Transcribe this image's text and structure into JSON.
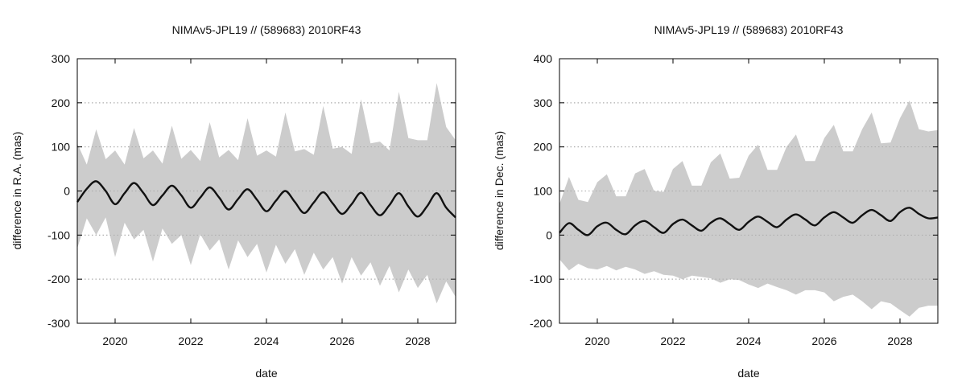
{
  "chart_data": [
    {
      "type": "area",
      "title": "NIMAv5-JPL19 // (589683) 2010RF43",
      "xlabel": "date",
      "ylabel": "difference in R.A. (mas)",
      "xlim": [
        2019.0,
        2029.0
      ],
      "ylim": [
        -300,
        300
      ],
      "xticks": [
        2020,
        2022,
        2024,
        2026,
        2028
      ],
      "xtick_labels": [
        "2020",
        "2022",
        "2024",
        "2026",
        "2028"
      ],
      "yticks": [
        -300,
        -200,
        -100,
        0,
        100,
        200,
        300
      ],
      "ytick_labels": [
        "-300",
        "-200",
        "-100",
        "0",
        "100",
        "200",
        "300"
      ],
      "grid": "horizontal dotted",
      "band_color": "#cccccc",
      "line_color": "#111111",
      "series": [
        {
          "kind": "upper_envelope",
          "x": [
            2019.0,
            2019.25,
            2019.5,
            2019.75,
            2020.0,
            2020.25,
            2020.5,
            2020.75,
            2021.0,
            2021.25,
            2021.5,
            2021.75,
            2022.0,
            2022.25,
            2022.5,
            2022.75,
            2023.0,
            2023.25,
            2023.5,
            2023.75,
            2024.0,
            2024.25,
            2024.5,
            2024.75,
            2025.0,
            2025.25,
            2025.5,
            2025.75,
            2026.0,
            2026.25,
            2026.5,
            2026.75,
            2027.0,
            2027.25,
            2027.5,
            2027.75,
            2028.0,
            2028.25,
            2028.5,
            2028.75,
            2029.0
          ],
          "y": [
            108,
            60,
            140,
            72,
            92,
            60,
            143,
            74,
            92,
            62,
            148,
            73,
            93,
            68,
            156,
            76,
            93,
            70,
            165,
            80,
            92,
            78,
            178,
            90,
            95,
            82,
            193,
            96,
            100,
            84,
            208,
            108,
            112,
            92,
            225,
            120,
            115,
            115,
            245,
            145,
            115
          ]
        },
        {
          "kind": "lower_envelope",
          "x": [
            2019.0,
            2019.25,
            2019.5,
            2019.75,
            2020.0,
            2020.25,
            2020.5,
            2020.75,
            2021.0,
            2021.25,
            2021.5,
            2021.75,
            2022.0,
            2022.25,
            2022.5,
            2022.75,
            2023.0,
            2023.25,
            2023.5,
            2023.75,
            2024.0,
            2024.25,
            2024.5,
            2024.75,
            2025.0,
            2025.25,
            2025.5,
            2025.75,
            2026.0,
            2026.25,
            2026.5,
            2026.75,
            2027.0,
            2027.25,
            2027.5,
            2027.75,
            2028.0,
            2028.25,
            2028.5,
            2028.75,
            2029.0
          ],
          "y": [
            -130,
            -62,
            -100,
            -60,
            -150,
            -72,
            -110,
            -88,
            -160,
            -85,
            -120,
            -100,
            -168,
            -98,
            -135,
            -110,
            -178,
            -112,
            -150,
            -120,
            -185,
            -122,
            -165,
            -132,
            -190,
            -140,
            -178,
            -150,
            -210,
            -150,
            -192,
            -162,
            -215,
            -170,
            -230,
            -178,
            -220,
            -190,
            -255,
            -205,
            -240
          ]
        },
        {
          "kind": "mean",
          "x": [
            2019.0,
            2019.25,
            2019.5,
            2019.75,
            2020.0,
            2020.25,
            2020.5,
            2020.75,
            2021.0,
            2021.25,
            2021.5,
            2021.75,
            2022.0,
            2022.25,
            2022.5,
            2022.75,
            2023.0,
            2023.25,
            2023.5,
            2023.75,
            2024.0,
            2024.25,
            2024.5,
            2024.75,
            2025.0,
            2025.25,
            2025.5,
            2025.75,
            2026.0,
            2026.25,
            2026.5,
            2026.75,
            2027.0,
            2027.25,
            2027.5,
            2027.75,
            2028.0,
            2028.25,
            2028.5,
            2028.75,
            2029.0
          ],
          "y": [
            -25,
            5,
            22,
            0,
            -30,
            -5,
            18,
            -5,
            -32,
            -10,
            12,
            -10,
            -38,
            -15,
            8,
            -15,
            -42,
            -18,
            4,
            -20,
            -46,
            -22,
            0,
            -25,
            -50,
            -26,
            -3,
            -28,
            -52,
            -30,
            -4,
            -32,
            -55,
            -32,
            -5,
            -35,
            -58,
            -34,
            -5,
            -38,
            -60
          ]
        }
      ]
    },
    {
      "type": "area",
      "title": "NIMAv5-JPL19 // (589683) 2010RF43",
      "xlabel": "date",
      "ylabel": "difference in Dec. (mas)",
      "xlim": [
        2019.0,
        2029.0
      ],
      "ylim": [
        -200,
        400
      ],
      "xticks": [
        2020,
        2022,
        2024,
        2026,
        2028
      ],
      "xtick_labels": [
        "2020",
        "2022",
        "2024",
        "2026",
        "2028"
      ],
      "yticks": [
        -200,
        -100,
        0,
        100,
        200,
        300,
        400
      ],
      "ytick_labels": [
        "-200",
        "-100",
        "0",
        "100",
        "200",
        "300",
        "400"
      ],
      "grid": "horizontal dotted",
      "band_color": "#cccccc",
      "line_color": "#111111",
      "series": [
        {
          "kind": "upper_envelope",
          "x": [
            2019.0,
            2019.25,
            2019.5,
            2019.75,
            2020.0,
            2020.25,
            2020.5,
            2020.75,
            2021.0,
            2021.25,
            2021.5,
            2021.75,
            2022.0,
            2022.25,
            2022.5,
            2022.75,
            2023.0,
            2023.25,
            2023.5,
            2023.75,
            2024.0,
            2024.25,
            2024.5,
            2024.75,
            2025.0,
            2025.25,
            2025.5,
            2025.75,
            2026.0,
            2026.25,
            2026.5,
            2026.75,
            2027.0,
            2027.25,
            2027.5,
            2027.75,
            2028.0,
            2028.25,
            2028.5,
            2028.75,
            2029.0
          ],
          "y": [
            70,
            132,
            80,
            75,
            120,
            138,
            88,
            88,
            140,
            150,
            100,
            98,
            150,
            168,
            112,
            112,
            165,
            185,
            128,
            130,
            180,
            205,
            148,
            148,
            200,
            228,
            168,
            168,
            220,
            250,
            190,
            190,
            240,
            278,
            208,
            210,
            265,
            305,
            240,
            235,
            238
          ]
        },
        {
          "kind": "lower_envelope",
          "x": [
            2019.0,
            2019.25,
            2019.5,
            2019.75,
            2020.0,
            2020.25,
            2020.5,
            2020.75,
            2021.0,
            2021.25,
            2021.5,
            2021.75,
            2022.0,
            2022.25,
            2022.5,
            2022.75,
            2023.0,
            2023.25,
            2023.5,
            2023.75,
            2024.0,
            2024.25,
            2024.5,
            2024.75,
            2025.0,
            2025.25,
            2025.5,
            2025.75,
            2026.0,
            2026.25,
            2026.5,
            2026.75,
            2027.0,
            2027.25,
            2027.5,
            2027.75,
            2028.0,
            2028.25,
            2028.5,
            2028.75,
            2029.0
          ],
          "y": [
            -55,
            -80,
            -65,
            -75,
            -78,
            -70,
            -80,
            -72,
            -78,
            -88,
            -82,
            -90,
            -92,
            -100,
            -92,
            -95,
            -98,
            -108,
            -100,
            -102,
            -112,
            -120,
            -110,
            -118,
            -125,
            -135,
            -125,
            -125,
            -130,
            -150,
            -140,
            -135,
            -150,
            -168,
            -150,
            -155,
            -170,
            -185,
            -165,
            -160,
            -160
          ]
        },
        {
          "kind": "mean",
          "x": [
            2019.0,
            2019.25,
            2019.5,
            2019.75,
            2020.0,
            2020.25,
            2020.5,
            2020.75,
            2021.0,
            2021.25,
            2021.5,
            2021.75,
            2022.0,
            2022.25,
            2022.5,
            2022.75,
            2023.0,
            2023.25,
            2023.5,
            2023.75,
            2024.0,
            2024.25,
            2024.5,
            2024.75,
            2025.0,
            2025.25,
            2025.5,
            2025.75,
            2026.0,
            2026.25,
            2026.5,
            2026.75,
            2027.0,
            2027.25,
            2027.5,
            2027.75,
            2028.0,
            2028.25,
            2028.5,
            2028.75,
            2029.0
          ],
          "y": [
            5,
            27,
            12,
            0,
            20,
            28,
            12,
            2,
            22,
            32,
            18,
            5,
            25,
            35,
            22,
            10,
            28,
            38,
            25,
            12,
            30,
            42,
            30,
            18,
            35,
            47,
            35,
            22,
            40,
            52,
            40,
            28,
            45,
            57,
            45,
            32,
            52,
            62,
            48,
            38,
            40
          ]
        }
      ]
    }
  ]
}
